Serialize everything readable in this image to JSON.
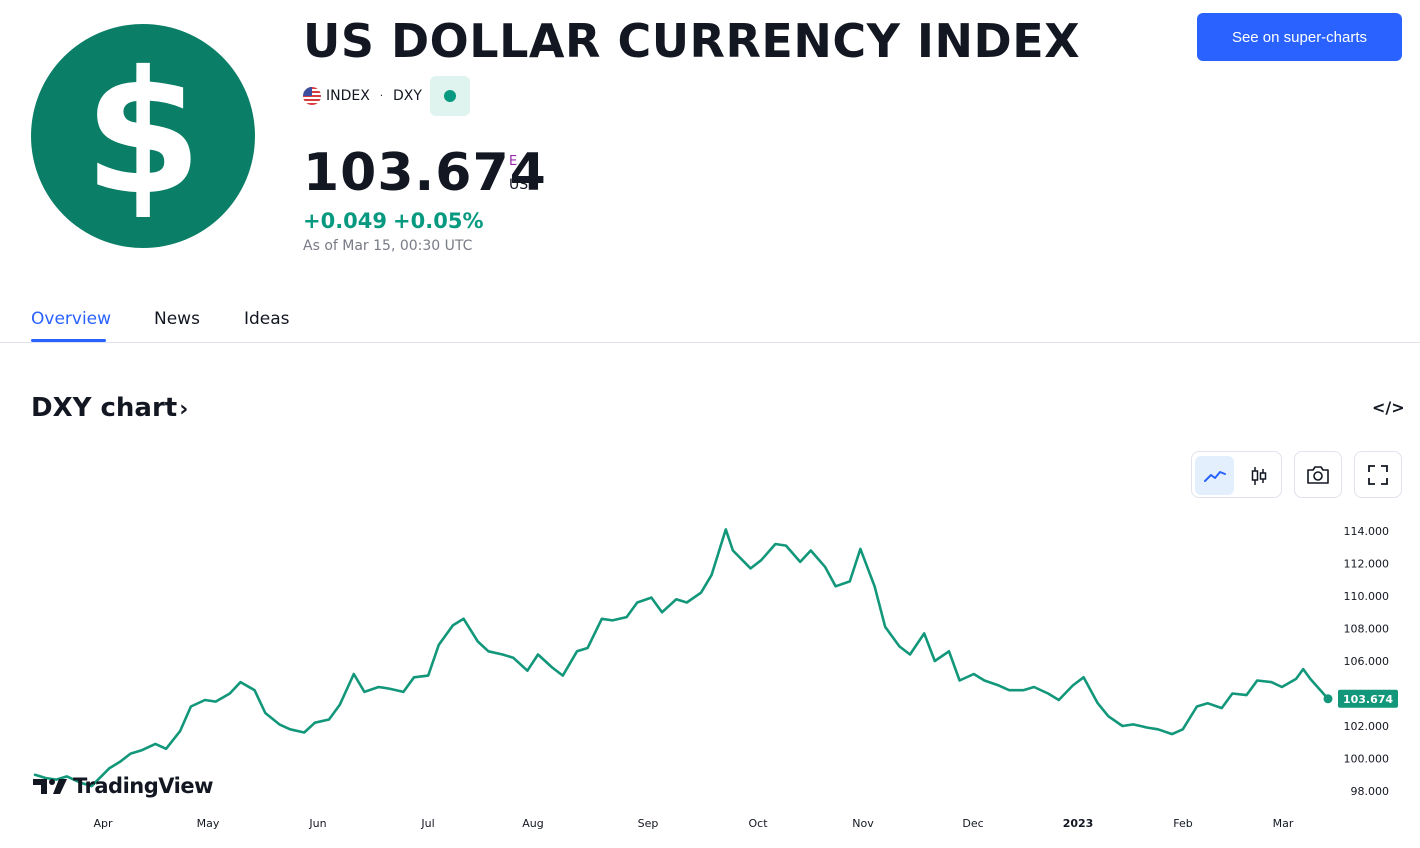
{
  "header": {
    "logo_symbol": "$",
    "logo_color": "#0b7e67",
    "title": "US DOLLAR CURRENCY INDEX",
    "exchange": "INDEX",
    "separator": "·",
    "symbol": "DXY",
    "market_status_icon": "market-open-dot-icon"
  },
  "quote": {
    "price": "103.674",
    "flag": "E",
    "currency": "USD",
    "change_abs": "+0.049",
    "change_pct": "+0.05%",
    "as_of": "As of Mar 15, 00:30 UTC",
    "change_color": "#089981"
  },
  "actions": {
    "super_charts": "See on super-charts",
    "accent": "#2962ff"
  },
  "tabs": [
    {
      "label": "Overview",
      "active": true
    },
    {
      "label": "News",
      "active": false
    },
    {
      "label": "Ideas",
      "active": false
    }
  ],
  "chart_section": {
    "title": "DXY chart",
    "title_chevron": "›",
    "embed_label": "</>",
    "tools": [
      "line-chart-icon",
      "candles-icon",
      "camera-icon",
      "fullscreen-icon"
    ],
    "watermark": "TradingView"
  },
  "chart_data": {
    "type": "line",
    "series": [
      {
        "color": "#12977a",
        "x": [
          "2022-03-15",
          "2022-03-18",
          "2022-03-21",
          "2022-03-24",
          "2022-03-28",
          "2022-03-31",
          "2022-04-05",
          "2022-04-08",
          "2022-04-11",
          "2022-04-14",
          "2022-04-18",
          "2022-04-21",
          "2022-04-25",
          "2022-04-28",
          "2022-05-02",
          "2022-05-05",
          "2022-05-09",
          "2022-05-12",
          "2022-05-16",
          "2022-05-19",
          "2022-05-23",
          "2022-05-26",
          "2022-05-30",
          "2022-06-02",
          "2022-06-06",
          "2022-06-09",
          "2022-06-13",
          "2022-06-16",
          "2022-06-20",
          "2022-06-23",
          "2022-06-27",
          "2022-06-30",
          "2022-07-04",
          "2022-07-07",
          "2022-07-11",
          "2022-07-14",
          "2022-07-18",
          "2022-07-21",
          "2022-07-25",
          "2022-07-28",
          "2022-08-01",
          "2022-08-04",
          "2022-08-08",
          "2022-08-11",
          "2022-08-15",
          "2022-08-18",
          "2022-08-22",
          "2022-08-25",
          "2022-08-29",
          "2022-09-01",
          "2022-09-05",
          "2022-09-08",
          "2022-09-12",
          "2022-09-15",
          "2022-09-19",
          "2022-09-22",
          "2022-09-26",
          "2022-09-28",
          "2022-10-03",
          "2022-10-06",
          "2022-10-10",
          "2022-10-13",
          "2022-10-17",
          "2022-10-20",
          "2022-10-24",
          "2022-10-27",
          "2022-10-31",
          "2022-11-03",
          "2022-11-07",
          "2022-11-10",
          "2022-11-14",
          "2022-11-17",
          "2022-11-21",
          "2022-11-24",
          "2022-11-28",
          "2022-12-01",
          "2022-12-05",
          "2022-12-08",
          "2022-12-12",
          "2022-12-15",
          "2022-12-19",
          "2022-12-22",
          "2022-12-26",
          "2022-12-29",
          "2023-01-02",
          "2023-01-05",
          "2023-01-09",
          "2023-01-12",
          "2023-01-16",
          "2023-01-19",
          "2023-01-23",
          "2023-01-26",
          "2023-01-30",
          "2023-02-02",
          "2023-02-06",
          "2023-02-09",
          "2023-02-13",
          "2023-02-16",
          "2023-02-20",
          "2023-02-23",
          "2023-02-27",
          "2023-03-02",
          "2023-03-06",
          "2023-03-08",
          "2023-03-10",
          "2023-03-15"
        ],
        "values": [
          99.0,
          98.8,
          98.7,
          98.9,
          98.5,
          98.3,
          99.4,
          99.8,
          100.3,
          100.5,
          100.9,
          100.6,
          101.7,
          103.2,
          103.6,
          103.5,
          104.0,
          104.7,
          104.2,
          102.8,
          102.1,
          101.8,
          101.6,
          102.2,
          102.4,
          103.3,
          105.2,
          104.1,
          104.4,
          104.3,
          104.1,
          105.0,
          105.1,
          107.0,
          108.2,
          108.6,
          107.2,
          106.6,
          106.4,
          106.2,
          105.4,
          106.4,
          105.6,
          105.1,
          106.6,
          106.8,
          108.6,
          108.5,
          108.7,
          109.6,
          109.9,
          109.0,
          109.8,
          109.6,
          110.2,
          111.3,
          114.1,
          112.8,
          111.7,
          112.2,
          113.2,
          113.1,
          112.1,
          112.8,
          111.8,
          110.6,
          110.9,
          112.9,
          110.6,
          108.1,
          106.9,
          106.4,
          107.7,
          106.0,
          106.6,
          104.8,
          105.2,
          104.8,
          104.5,
          104.2,
          104.2,
          104.4,
          104.0,
          103.6,
          104.5,
          105.0,
          103.4,
          102.6,
          102.0,
          102.1,
          101.9,
          101.8,
          101.5,
          101.8,
          103.2,
          103.4,
          103.1,
          104.0,
          103.9,
          104.8,
          104.7,
          104.4,
          104.9,
          105.5,
          104.9,
          103.674
        ]
      }
    ],
    "last_value_label": "103.674",
    "x_tick_labels": [
      "Apr",
      "May",
      "Jun",
      "Jul",
      "Aug",
      "Sep",
      "Oct",
      "Nov",
      "Dec",
      "2023",
      "Feb",
      "Mar"
    ],
    "y_tick_labels": [
      "114.000",
      "112.000",
      "110.000",
      "108.000",
      "106.000",
      "102.000",
      "100.000",
      "98.000"
    ],
    "ylim": [
      97.4,
      115.0
    ],
    "xlim": [
      "2022-03-08",
      "2023-03-30"
    ],
    "grid": false,
    "legend": "none"
  }
}
